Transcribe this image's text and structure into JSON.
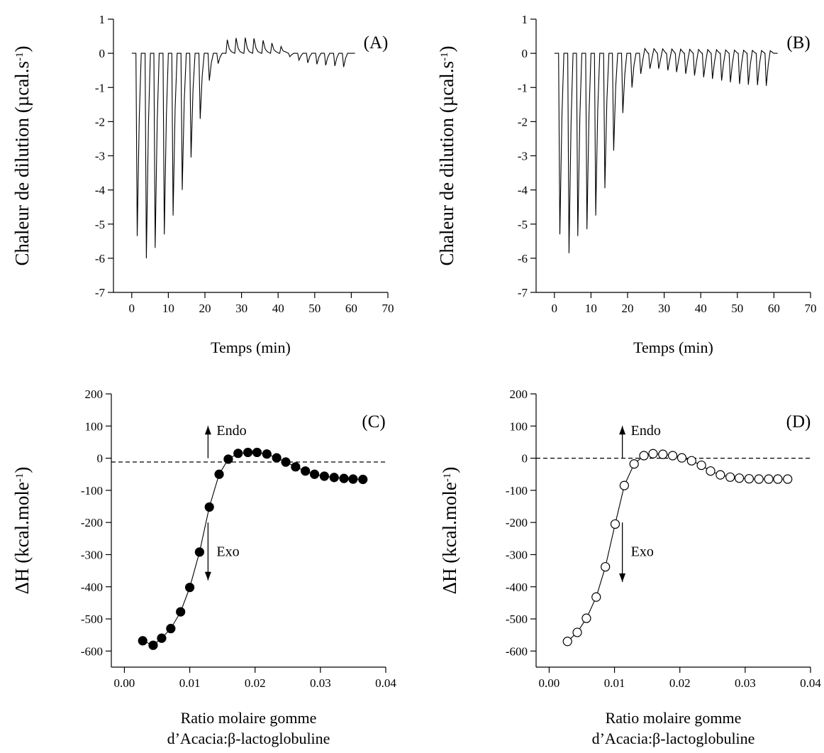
{
  "colors": {
    "ink": "#000000",
    "background": "#ffffff"
  },
  "chart_data": [
    {
      "id": "A",
      "type": "line",
      "panel_label": "(A)",
      "xlabel": "Temps (min)",
      "ylabel": "Chaleur de dilution (µcal.s",
      "ylabel_sup": "-1",
      "ylabel_end": ")",
      "xlim": [
        -5,
        70
      ],
      "ylim": [
        -7,
        1
      ],
      "xticks": [
        0,
        10,
        20,
        30,
        40,
        50,
        60,
        70
      ],
      "yticks": [
        1,
        0,
        -1,
        -2,
        -3,
        -4,
        -5,
        -6,
        -7
      ],
      "baseline_start": 0,
      "baseline_end": 61,
      "injection_interval_min": 2.45,
      "peaks": [
        {
          "t": 1.5,
          "h": -5.35
        },
        {
          "t": 4.0,
          "h": -6.0
        },
        {
          "t": 6.4,
          "h": -5.7
        },
        {
          "t": 8.9,
          "h": -5.3
        },
        {
          "t": 11.3,
          "h": -4.75
        },
        {
          "t": 13.8,
          "h": -4.0
        },
        {
          "t": 16.2,
          "h": -3.05
        },
        {
          "t": 18.7,
          "h": -1.92
        },
        {
          "t": 21.2,
          "h": -0.8
        },
        {
          "t": 23.6,
          "h": -0.3
        },
        {
          "t": 26.1,
          "h": 0.4
        },
        {
          "t": 28.5,
          "h": 0.45
        },
        {
          "t": 31.0,
          "h": 0.46
        },
        {
          "t": 33.4,
          "h": 0.44
        },
        {
          "t": 35.9,
          "h": 0.38
        },
        {
          "t": 38.3,
          "h": 0.3
        },
        {
          "t": 40.8,
          "h": 0.2
        },
        {
          "t": 43.2,
          "h": -0.1
        },
        {
          "t": 45.7,
          "h": -0.2
        },
        {
          "t": 48.1,
          "h": -0.28
        },
        {
          "t": 50.6,
          "h": -0.32
        },
        {
          "t": 53.0,
          "h": -0.35
        },
        {
          "t": 55.5,
          "h": -0.37
        },
        {
          "t": 57.9,
          "h": -0.4
        }
      ]
    },
    {
      "id": "B",
      "type": "line",
      "panel_label": "(B)",
      "xlabel": "Temps (min)",
      "ylabel": "Chaleur de dilution (µcal.s",
      "ylabel_sup": "-1",
      "ylabel_end": ")",
      "xlim": [
        -5,
        70
      ],
      "ylim": [
        -7,
        1
      ],
      "xticks": [
        0,
        10,
        20,
        30,
        40,
        50,
        60,
        70
      ],
      "yticks": [
        1,
        0,
        -1,
        -2,
        -3,
        -4,
        -5,
        -6,
        -7
      ],
      "baseline_start": 0,
      "baseline_end": 61,
      "injection_interval_min": 2.45,
      "peaks": [
        {
          "t": 1.5,
          "h": -5.3
        },
        {
          "t": 4.0,
          "h": -5.85
        },
        {
          "t": 6.4,
          "h": -5.35
        },
        {
          "t": 8.9,
          "h": -5.15
        },
        {
          "t": 11.3,
          "h": -4.75
        },
        {
          "t": 13.8,
          "h": -3.95
        },
        {
          "t": 16.2,
          "h": -2.85
        },
        {
          "t": 18.7,
          "h": -1.75
        },
        {
          "t": 21.2,
          "h": -1.0
        },
        {
          "t": 23.6,
          "h": -0.6
        },
        {
          "t": 26.1,
          "h": -0.45
        },
        {
          "t": 28.5,
          "h": -0.45
        },
        {
          "t": 31.0,
          "h": -0.5
        },
        {
          "t": 33.4,
          "h": -0.55
        },
        {
          "t": 35.9,
          "h": -0.6
        },
        {
          "t": 38.3,
          "h": -0.65
        },
        {
          "t": 40.8,
          "h": -0.7
        },
        {
          "t": 43.2,
          "h": -0.75
        },
        {
          "t": 45.7,
          "h": -0.8
        },
        {
          "t": 48.1,
          "h": -0.85
        },
        {
          "t": 50.6,
          "h": -0.9
        },
        {
          "t": 53.0,
          "h": -0.92
        },
        {
          "t": 55.5,
          "h": -0.93
        },
        {
          "t": 57.9,
          "h": -0.95
        }
      ],
      "positive_overshoot": 0.18
    },
    {
      "id": "C",
      "type": "scatter",
      "marker": "filled-circle",
      "panel_label": "(C)",
      "xlabel_line1": "Ratio molaire gomme",
      "xlabel_line2": "d’Acacia:β-lactoglobuline",
      "ylabel": "ΔH (kcal.mole",
      "ylabel_sup": "-1",
      "ylabel_end": ")",
      "xlim": [
        -0.002,
        0.04
      ],
      "ylim": [
        -650,
        200
      ],
      "xticks": [
        "0.00",
        "0.01",
        "0.02",
        "0.03",
        "0.04"
      ],
      "yticks": [
        200,
        100,
        0,
        -100,
        -200,
        -300,
        -400,
        -500,
        -600
      ],
      "reference_line_y": -12,
      "endo_label": "Endo",
      "exo_label": "Exo",
      "endo_arrow": {
        "x": 0.0128,
        "y_from": 0,
        "y_to": 100
      },
      "exo_arrow": {
        "x": 0.0128,
        "y_from": -200,
        "y_to": -380
      },
      "x": [
        0.0028,
        0.0044,
        0.0057,
        0.0071,
        0.0086,
        0.01,
        0.0115,
        0.013,
        0.0145,
        0.0159,
        0.0174,
        0.0189,
        0.0203,
        0.0218,
        0.0233,
        0.0247,
        0.0262,
        0.0277,
        0.0291,
        0.0306,
        0.0321,
        0.0336,
        0.035,
        0.0365
      ],
      "y": [
        -568,
        -582,
        -560,
        -530,
        -478,
        -402,
        -292,
        -152,
        -50,
        -3,
        15,
        18,
        18,
        13,
        1,
        -12,
        -27,
        -40,
        -50,
        -56,
        -60,
        -63,
        -65,
        -66
      ]
    },
    {
      "id": "D",
      "type": "scatter",
      "marker": "open-circle",
      "panel_label": "(D)",
      "xlabel_line1": "Ratio molaire gomme",
      "xlabel_line2": "d’Acacia:β-lactoglobuline",
      "ylabel": "ΔH (kcal.mole",
      "ylabel_sup": "-1",
      "ylabel_end": ")",
      "xlim": [
        -0.002,
        0.04
      ],
      "ylim": [
        -650,
        200
      ],
      "xticks": [
        "0.00",
        "0.01",
        "0.02",
        "0.03",
        "0.04"
      ],
      "yticks": [
        200,
        100,
        0,
        -100,
        -200,
        -300,
        -400,
        -500,
        -600
      ],
      "reference_line_y": 0,
      "endo_label": "Endo",
      "exo_label": "Exo",
      "endo_arrow": {
        "x": 0.0112,
        "y_from": 0,
        "y_to": 100
      },
      "exo_arrow": {
        "x": 0.0112,
        "y_from": -200,
        "y_to": -385
      },
      "x": [
        0.0028,
        0.0043,
        0.0057,
        0.0072,
        0.0086,
        0.0101,
        0.0115,
        0.013,
        0.0145,
        0.0159,
        0.0174,
        0.0189,
        0.0203,
        0.0218,
        0.0233,
        0.0247,
        0.0262,
        0.0277,
        0.0291,
        0.0306,
        0.0321,
        0.0336,
        0.035,
        0.0365
      ],
      "y": [
        -570,
        -542,
        -498,
        -432,
        -338,
        -205,
        -85,
        -18,
        8,
        14,
        12,
        8,
        1,
        -8,
        -22,
        -40,
        -52,
        -59,
        -62,
        -64,
        -65,
        -65,
        -65,
        -65
      ]
    }
  ]
}
